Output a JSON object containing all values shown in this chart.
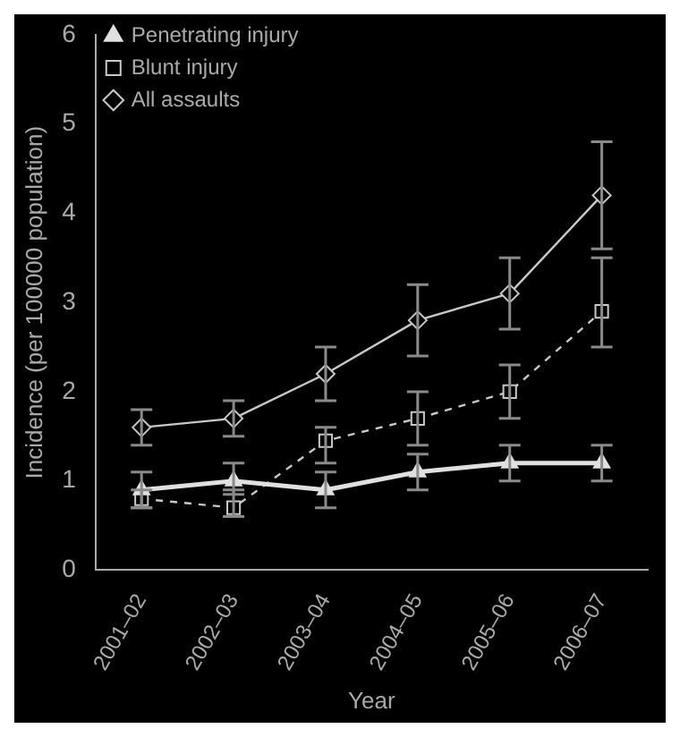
{
  "chart_data": {
    "type": "line",
    "xlabel": "Year",
    "ylabel": "Incidence (per 100000 population)",
    "categories": [
      "2001–02",
      "2002–03",
      "2003–04",
      "2004–05",
      "2005–06",
      "2006–07"
    ],
    "ylim": [
      0,
      6
    ],
    "yticks": [
      0,
      1,
      2,
      3,
      4,
      5,
      6
    ],
    "grid": false,
    "legend": "top left",
    "series": [
      {
        "name": "All assaults",
        "color": "#c8c8c8",
        "marker": "diamond",
        "line_style": "solid",
        "values": [
          1.6,
          1.7,
          2.2,
          2.8,
          3.1,
          4.2
        ],
        "errors": [
          [
            1.4,
            1.8
          ],
          [
            1.5,
            1.9
          ],
          [
            1.9,
            2.5
          ],
          [
            2.4,
            3.2
          ],
          [
            2.7,
            3.5
          ],
          [
            3.6,
            4.8
          ]
        ]
      },
      {
        "name": "Blunt injury",
        "color": "#c8c8c8",
        "marker": "square",
        "line_style": "dashed",
        "values": [
          0.8,
          0.7,
          1.45,
          1.7,
          2.0,
          2.9
        ],
        "errors": [
          [
            0.7,
            0.9
          ],
          [
            0.6,
            0.9
          ],
          [
            1.2,
            1.6
          ],
          [
            1.4,
            2.0
          ],
          [
            1.7,
            2.3
          ],
          [
            2.5,
            3.5
          ]
        ]
      },
      {
        "name": "Penetrating injury",
        "color": "#e0e0e0",
        "marker": "triangle",
        "line_style": "solid",
        "values": [
          0.9,
          1.0,
          0.9,
          1.1,
          1.2,
          1.2
        ],
        "errors": [
          [
            0.7,
            1.1
          ],
          [
            0.85,
            1.2
          ],
          [
            0.7,
            1.1
          ],
          [
            0.9,
            1.3
          ],
          [
            1.0,
            1.4
          ],
          [
            1.0,
            1.4
          ]
        ]
      }
    ]
  }
}
